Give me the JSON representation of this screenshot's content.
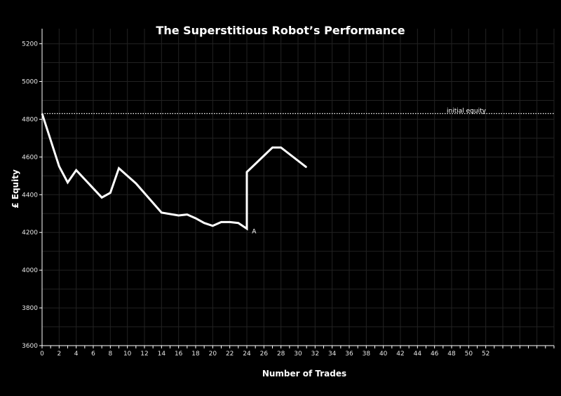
{
  "chart_data": {
    "type": "line",
    "title": "The Superstitious Robot’s Performance",
    "xlabel": "Number of Trades",
    "ylabel": "£ Equity",
    "xlim": [
      0,
      60
    ],
    "ylim": [
      3600,
      5280
    ],
    "x_ticks": [
      0,
      2,
      4,
      6,
      8,
      10,
      12,
      14,
      16,
      18,
      20,
      22,
      24,
      26,
      28,
      30,
      32,
      34,
      36,
      38,
      40,
      42,
      44,
      46,
      48,
      50,
      52
    ],
    "x_tick_labels": [
      "0",
      "2",
      "4",
      "6",
      "8",
      "10",
      "12",
      "14",
      "16",
      "18",
      "20",
      "22",
      "24",
      "26",
      "28",
      "30",
      "32",
      "34",
      "36",
      "38",
      "40",
      "42",
      "44",
      "46",
      "48",
      "50",
      "52"
    ],
    "y_ticks": [
      3600,
      3800,
      4000,
      4200,
      4400,
      4600,
      4800,
      5000,
      5200
    ],
    "grid": true,
    "series": [
      {
        "x": [
          0,
          2,
          3,
          4,
          7,
          8,
          9,
          11,
          14,
          16,
          17,
          18,
          19,
          20,
          21,
          22,
          23,
          24,
          24,
          27,
          28,
          31
        ],
        "y": [
          4830,
          4550,
          4465,
          4530,
          4385,
          4410,
          4540,
          4460,
          4305,
          4290,
          4295,
          4275,
          4250,
          4235,
          4255,
          4255,
          4250,
          4220,
          4520,
          4650,
          4650,
          4545
        ],
        "color": "#ffffff"
      }
    ],
    "reference_line": {
      "y": 4830,
      "label": "initial equity",
      "style": "dotted"
    },
    "annotations": [
      {
        "text": "A",
        "x": 24.6,
        "y": 4195
      }
    ]
  }
}
